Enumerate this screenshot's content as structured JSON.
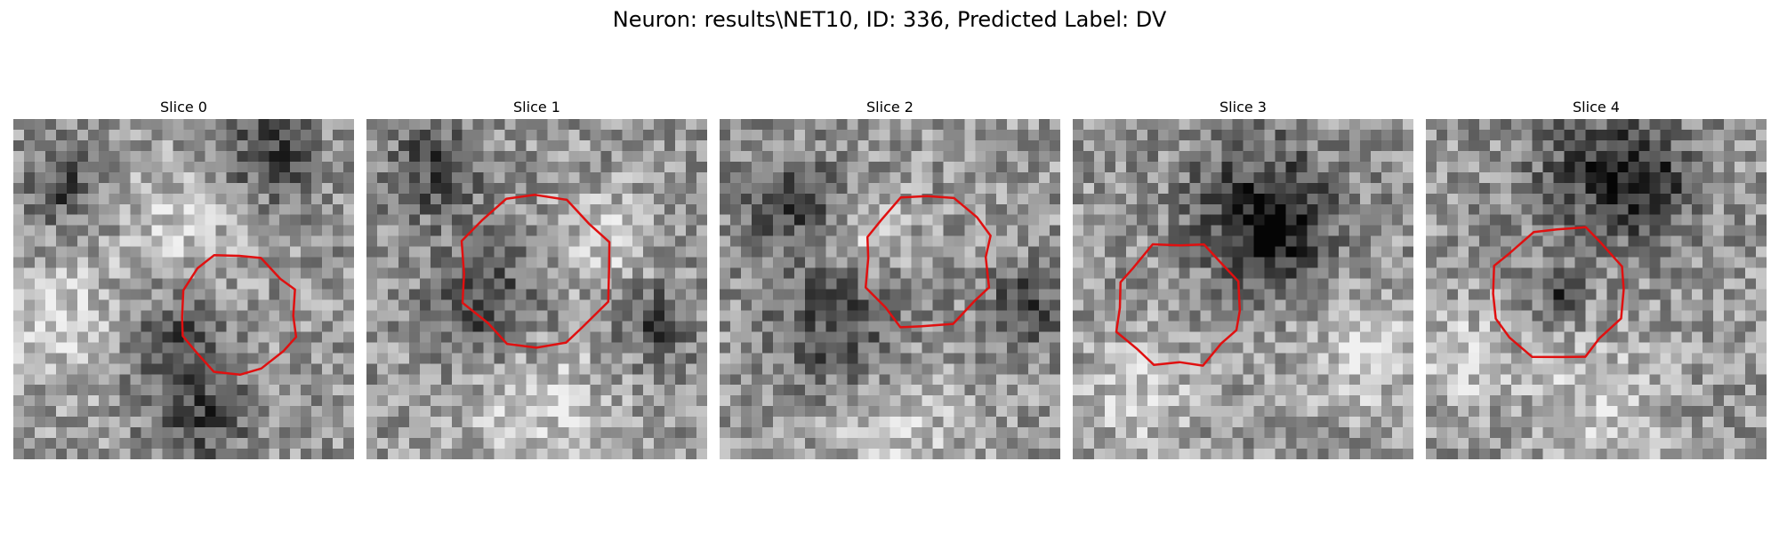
{
  "figure": {
    "title": "Neuron: results\\NET10, ID: 336, Predicted Label: DV"
  },
  "contour_color": "#e01010",
  "grid_cells": 32,
  "slices": [
    {
      "label": "Slice 0",
      "seed": 11,
      "center": [
        0.66,
        0.57
      ],
      "radius": 0.18,
      "dark_spots": [
        [
          0.45,
          0.65,
          0.1
        ],
        [
          0.55,
          0.88,
          0.1
        ],
        [
          0.75,
          0.1,
          0.1
        ],
        [
          0.15,
          0.2,
          0.08
        ]
      ],
      "light_spots": [
        [
          0.15,
          0.6,
          0.14
        ],
        [
          0.5,
          0.3,
          0.12
        ]
      ]
    },
    {
      "label": "Slice 1",
      "seed": 23,
      "center": [
        0.5,
        0.45
      ],
      "radius": 0.23,
      "dark_spots": [
        [
          0.35,
          0.55,
          0.12
        ],
        [
          0.2,
          0.15,
          0.1
        ],
        [
          0.85,
          0.6,
          0.08
        ]
      ],
      "light_spots": [
        [
          0.5,
          0.85,
          0.16
        ],
        [
          0.7,
          0.35,
          0.1
        ]
      ]
    },
    {
      "label": "Slice 2",
      "seed": 37,
      "center": [
        0.61,
        0.42
      ],
      "radius": 0.2,
      "dark_spots": [
        [
          0.35,
          0.62,
          0.14
        ],
        [
          0.2,
          0.25,
          0.1
        ],
        [
          0.9,
          0.55,
          0.08
        ]
      ],
      "light_spots": [
        [
          0.5,
          0.9,
          0.14
        ],
        [
          0.45,
          0.35,
          0.08
        ]
      ]
    },
    {
      "label": "Slice 3",
      "seed": 51,
      "center": [
        0.31,
        0.55
      ],
      "radius": 0.19,
      "dark_spots": [
        [
          0.55,
          0.25,
          0.16
        ],
        [
          0.6,
          0.35,
          0.1
        ]
      ],
      "light_spots": [
        [
          0.2,
          0.8,
          0.12
        ],
        [
          0.85,
          0.7,
          0.12
        ]
      ]
    },
    {
      "label": "Slice 4",
      "seed": 67,
      "center": [
        0.39,
        0.51
      ],
      "radius": 0.2,
      "dark_spots": [
        [
          0.5,
          0.15,
          0.14
        ],
        [
          0.65,
          0.2,
          0.1
        ],
        [
          0.39,
          0.52,
          0.05
        ]
      ],
      "light_spots": [
        [
          0.5,
          0.85,
          0.14
        ],
        [
          0.1,
          0.7,
          0.1
        ]
      ]
    }
  ]
}
